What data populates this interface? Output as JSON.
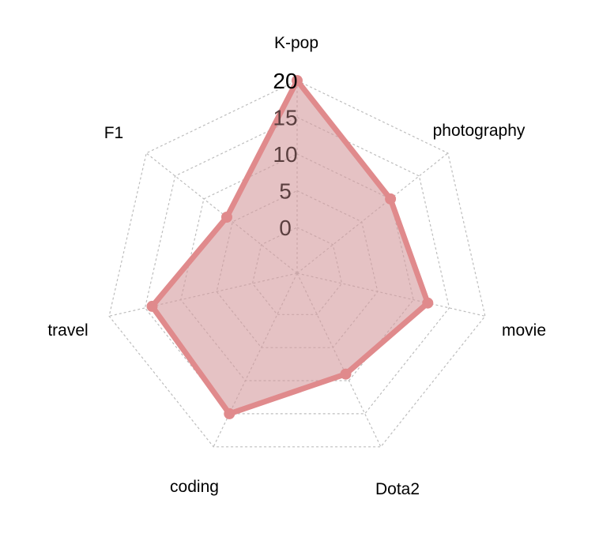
{
  "chart_data": {
    "type": "radar",
    "title": "",
    "categories": [
      "K-pop",
      "photography",
      "movie",
      "Dota2",
      "coding",
      "travel",
      "F1"
    ],
    "series": [
      {
        "values": [
          20,
          10,
          12,
          9,
          15,
          14,
          6
        ]
      }
    ],
    "rmax": 20,
    "ticks": [
      "0",
      "5",
      "10",
      "15",
      "20"
    ],
    "grid": true,
    "colors": {
      "series_fill": "#d49a9c",
      "series_stroke": "#e08a8c",
      "grid": "#bdbdbd"
    }
  }
}
